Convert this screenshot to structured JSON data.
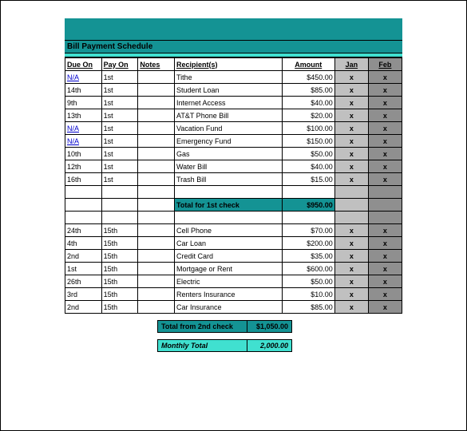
{
  "title": "Bill Payment Schedule",
  "columns": {
    "due": "Due On",
    "pay": "Pay On",
    "notes": "Notes",
    "recip": "Recipient(s)",
    "amt": "Amount",
    "jan": "Jan",
    "feb": "Feb"
  },
  "mark": "x",
  "rows1": [
    {
      "due": "N/A",
      "due_link": true,
      "pay": "1st",
      "recip": "Tithe",
      "amt": "$450.00"
    },
    {
      "due": "14th",
      "pay": "1st",
      "recip": "Student Loan",
      "amt": "$85.00"
    },
    {
      "due": "9th",
      "pay": "1st",
      "recip": "Internet Access",
      "amt": "$40.00"
    },
    {
      "due": "13th",
      "pay": "1st",
      "recip": "AT&T Phone Bill",
      "amt": "$20.00"
    },
    {
      "due": "N/A",
      "due_link": true,
      "pay": "1st",
      "recip": "Vacation Fund",
      "amt": "$100.00"
    },
    {
      "due": "N/A",
      "due_link": true,
      "pay": "1st",
      "recip": "Emergency Fund",
      "amt": "$150.00"
    },
    {
      "due": "10th",
      "pay": "1st",
      "recip": "Gas",
      "amt": "$50.00"
    },
    {
      "due": "12th",
      "pay": "1st",
      "recip": "Water Bill",
      "amt": "$40.00"
    },
    {
      "due": "16th",
      "pay": "1st",
      "recip": "Trash Bill",
      "amt": "$15.00"
    }
  ],
  "subtotal1": {
    "label": "Total for 1st check",
    "amt": "$950.00"
  },
  "rows2": [
    {
      "due": "24th",
      "pay": "15th",
      "recip": "Cell Phone",
      "amt": "$70.00"
    },
    {
      "due": "4th",
      "pay": "15th",
      "recip": "Car Loan",
      "amt": "$200.00"
    },
    {
      "due": "2nd",
      "pay": "15th",
      "recip": "Credit Card",
      "amt": "$35.00"
    },
    {
      "due": "1st",
      "pay": "15th",
      "recip": "Mortgage or Rent",
      "amt": "$600.00"
    },
    {
      "due": "26th",
      "pay": "15th",
      "recip": "Electric",
      "amt": "$50.00"
    },
    {
      "due": "3rd",
      "pay": "15th",
      "recip": "Renters Insurance",
      "amt": "$10.00"
    },
    {
      "due": "2nd",
      "pay": "15th",
      "recip": "Car Insurance",
      "amt": "$85.00"
    }
  ],
  "subtotal2": {
    "label": "Total from 2nd check",
    "amt": "$1,050.00"
  },
  "monthly": {
    "label": "Monthly Total",
    "amt": "2,000.00"
  },
  "colors": {
    "teal": "#149394",
    "aqua": "#40e0d0",
    "m1": "#c0c0c0",
    "m2": "#8f8f8f"
  }
}
